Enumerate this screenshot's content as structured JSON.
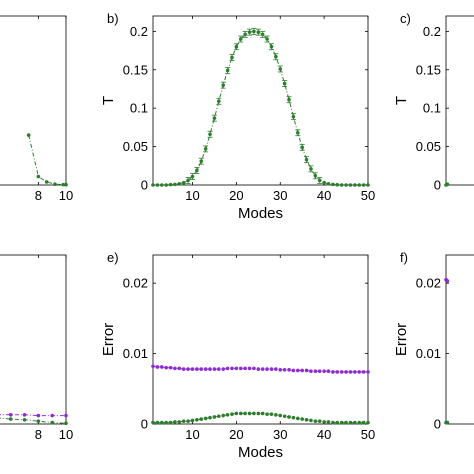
{
  "chart_data": [
    {
      "panel": "a",
      "label": "",
      "type": "line",
      "xlabel": "",
      "ylabel": "",
      "xlim": [
        4.5,
        10
      ],
      "ylim": [
        0,
        0.22
      ],
      "xticks": [
        "8",
        "10"
      ],
      "yticks": [],
      "series": [
        {
          "color": "#2e7d2e",
          "x": [
            7.3,
            8.0,
            8.6,
            9.2,
            9.8,
            10
          ],
          "y": [
            0.065,
            0.011,
            0.004,
            0.001,
            0.0005,
            0.0004
          ]
        }
      ]
    },
    {
      "panel": "b",
      "label": "b)",
      "type": "line",
      "xlabel": "Modes",
      "ylabel": "T",
      "xlim": [
        1,
        50
      ],
      "ylim": [
        0,
        0.22
      ],
      "xticks": [
        "10",
        "20",
        "30",
        "40",
        "50"
      ],
      "yticks": [
        "0",
        "0.05",
        "0.1",
        "0.15",
        "0.2"
      ],
      "series": [
        {
          "color": "#2e7d2e",
          "x": [
            1,
            2,
            3,
            4,
            5,
            6,
            7,
            8,
            9,
            10,
            11,
            12,
            13,
            14,
            15,
            16,
            17,
            18,
            19,
            20,
            21,
            22,
            23,
            24,
            25,
            26,
            27,
            28,
            29,
            30,
            31,
            32,
            33,
            34,
            35,
            36,
            37,
            38,
            39,
            40,
            41,
            42,
            43,
            44,
            45,
            46,
            47,
            48,
            49,
            50
          ],
          "y": [
            0.0,
            0.0,
            0.0,
            0.0,
            0.0005,
            0.0008,
            0.0015,
            0.003,
            0.006,
            0.011,
            0.019,
            0.031,
            0.047,
            0.066,
            0.087,
            0.109,
            0.13,
            0.149,
            0.166,
            0.18,
            0.19,
            0.196,
            0.199,
            0.2,
            0.199,
            0.196,
            0.19,
            0.18,
            0.167,
            0.151,
            0.132,
            0.111,
            0.089,
            0.068,
            0.049,
            0.033,
            0.021,
            0.012,
            0.006,
            0.003,
            0.0015,
            0.0008,
            0.0004,
            0.0,
            0.0,
            0.0,
            0.0,
            0.0,
            0.0,
            0.0
          ]
        }
      ]
    },
    {
      "panel": "c",
      "label": "c)",
      "type": "line",
      "xlabel": "",
      "ylabel": "T",
      "xlim": [
        1,
        50
      ],
      "ylim": [
        0,
        0.22
      ],
      "xticks": [],
      "yticks": [
        "0",
        "0.05",
        "0.1",
        "0.15",
        "0.2"
      ],
      "series": [
        {
          "color": "#2e7d2e",
          "x": [
            1,
            2,
            3
          ],
          "y": [
            0.0,
            0.0005,
            0.001
          ]
        }
      ]
    },
    {
      "panel": "d",
      "label": "",
      "type": "line",
      "xlabel": "",
      "ylabel": "",
      "xlim": [
        4.5,
        10
      ],
      "ylim": [
        0,
        0.024
      ],
      "xticks": [
        "8",
        "10"
      ],
      "yticks": [],
      "series": [
        {
          "color": "#8e2bd3",
          "x": [
            5,
            6,
            7,
            8,
            9,
            10
          ],
          "y": [
            0.0013,
            0.0013,
            0.0013,
            0.0012,
            0.0012,
            0.0012
          ]
        },
        {
          "color": "#2e7d2e",
          "x": [
            5,
            6,
            7,
            8,
            9,
            10
          ],
          "y": [
            0.0009,
            0.0007,
            0.0006,
            0.0004,
            0.0002,
            0.0001
          ]
        }
      ]
    },
    {
      "panel": "e",
      "label": "e)",
      "type": "line",
      "xlabel": "Modes",
      "ylabel": "Error",
      "xlim": [
        1,
        50
      ],
      "ylim": [
        0,
        0.024
      ],
      "xticks": [
        "10",
        "20",
        "30",
        "40",
        "50"
      ],
      "yticks": [
        "0",
        "0.01",
        "0.02"
      ],
      "series": [
        {
          "color": "#8e2bd3",
          "x": [
            1,
            2,
            3,
            4,
            5,
            6,
            7,
            8,
            9,
            10,
            11,
            12,
            13,
            14,
            15,
            16,
            17,
            18,
            19,
            20,
            21,
            22,
            23,
            24,
            25,
            26,
            27,
            28,
            29,
            30,
            31,
            32,
            33,
            34,
            35,
            36,
            37,
            38,
            39,
            40,
            41,
            42,
            43,
            44,
            45,
            46,
            47,
            48,
            49,
            50
          ],
          "y": [
            0.0082,
            0.0081,
            0.0081,
            0.008,
            0.008,
            0.0079,
            0.0079,
            0.0078,
            0.0078,
            0.0078,
            0.0078,
            0.0078,
            0.0078,
            0.0078,
            0.0078,
            0.0078,
            0.0078,
            0.0079,
            0.0079,
            0.0079,
            0.0079,
            0.0079,
            0.0079,
            0.0079,
            0.0078,
            0.0078,
            0.0078,
            0.0078,
            0.0078,
            0.0077,
            0.0077,
            0.0077,
            0.0076,
            0.0076,
            0.0076,
            0.0076,
            0.0075,
            0.0075,
            0.0075,
            0.0075,
            0.0075,
            0.0074,
            0.0074,
            0.0074,
            0.0074,
            0.0074,
            0.0074,
            0.0074,
            0.0074,
            0.0074
          ]
        },
        {
          "color": "#2e7d2e",
          "x": [
            1,
            2,
            3,
            4,
            5,
            6,
            7,
            8,
            9,
            10,
            11,
            12,
            13,
            14,
            15,
            16,
            17,
            18,
            19,
            20,
            21,
            22,
            23,
            24,
            25,
            26,
            27,
            28,
            29,
            30,
            31,
            32,
            33,
            34,
            35,
            36,
            37,
            38,
            39,
            40,
            41,
            42,
            43,
            44,
            45,
            46,
            47,
            48,
            49,
            50
          ],
          "y": [
            0.0002,
            0.0002,
            0.0002,
            0.0002,
            0.0002,
            0.0003,
            0.0003,
            0.0004,
            0.0004,
            0.0005,
            0.0006,
            0.0007,
            0.0008,
            0.0009,
            0.001,
            0.0011,
            0.0012,
            0.0013,
            0.0014,
            0.0015,
            0.0015,
            0.0015,
            0.0015,
            0.0015,
            0.0015,
            0.0015,
            0.0014,
            0.0014,
            0.0013,
            0.0012,
            0.0011,
            0.001,
            0.0009,
            0.0008,
            0.0007,
            0.0006,
            0.0005,
            0.0004,
            0.0004,
            0.0003,
            0.0003,
            0.0002,
            0.0002,
            0.0002,
            0.0002,
            0.0002,
            0.0002,
            0.0002,
            0.0002,
            0.0002
          ]
        }
      ]
    },
    {
      "panel": "f",
      "label": "f)",
      "type": "line",
      "xlabel": "",
      "ylabel": "Error",
      "xlim": [
        1,
        50
      ],
      "ylim": [
        0,
        0.024
      ],
      "xticks": [],
      "yticks": [
        "0",
        "0.01",
        "0.02"
      ],
      "series": [
        {
          "color": "#8e2bd3",
          "x": [
            1,
            2,
            3
          ],
          "y": [
            0.0205,
            0.0204,
            0.0203
          ]
        },
        {
          "color": "#2e7d2e",
          "x": [
            1,
            2,
            3
          ],
          "y": [
            0.0002,
            0.0002,
            0.0002
          ]
        }
      ]
    }
  ]
}
